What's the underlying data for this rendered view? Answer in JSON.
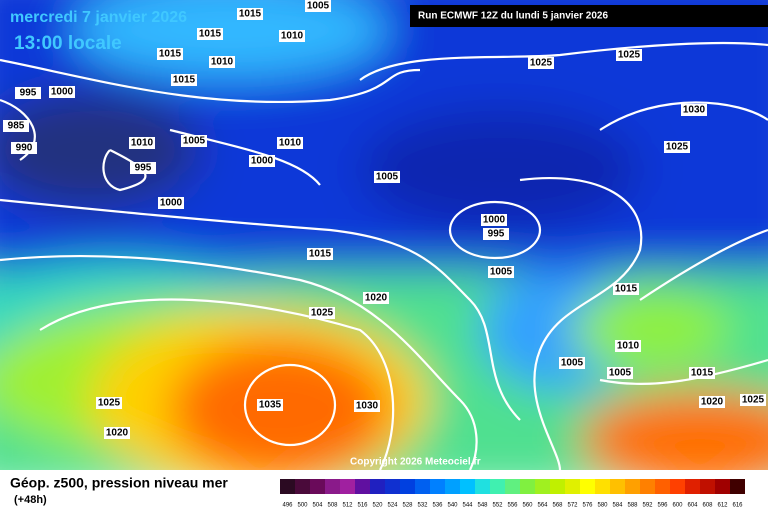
{
  "header": {
    "date": "mercredi 7 janvier 2026",
    "time": "13:00 locale",
    "run": "Run ECMWF 12Z du lundi 5 janvier 2026"
  },
  "isobar_labels": [
    1005,
    1015,
    1015,
    1010,
    1015,
    1010,
    1015,
    995,
    1000,
    985,
    990,
    1010,
    1005,
    1010,
    995,
    1000,
    1000,
    1005,
    1025,
    1025,
    1030,
    1025,
    1000,
    995,
    1005,
    1015,
    1020,
    1025,
    1015,
    1010,
    1005,
    1005,
    1015,
    1030,
    1035,
    1025,
    1020,
    1020,
    1025
  ],
  "copyright": "Copyright 2026 Meteociel.fr",
  "footer": {
    "title": "Géop. z500, pression niveau mer",
    "lead": "(+48h)"
  },
  "scale": {
    "values": [
      496,
      500,
      504,
      508,
      512,
      516,
      520,
      524,
      528,
      532,
      536,
      540,
      544,
      548,
      552,
      556,
      560,
      564,
      568,
      572,
      576,
      580,
      584,
      588,
      592,
      596,
      600,
      604,
      608,
      612,
      616
    ],
    "colors": [
      "#2b0a22",
      "#4a0a3a",
      "#6a0a5a",
      "#8a1a8a",
      "#a020a0",
      "#6010a0",
      "#2020c0",
      "#1030d0",
      "#0040e0",
      "#0060f0",
      "#0080ff",
      "#00a0ff",
      "#00c0ff",
      "#20e0e0",
      "#40f0b0",
      "#60f080",
      "#80f040",
      "#a0f020",
      "#c0f000",
      "#e0f000",
      "#ffff00",
      "#ffe000",
      "#ffc000",
      "#ffa000",
      "#ff8000",
      "#ff6000",
      "#ff4000",
      "#e02000",
      "#c01000",
      "#a00000",
      "#400000"
    ]
  }
}
